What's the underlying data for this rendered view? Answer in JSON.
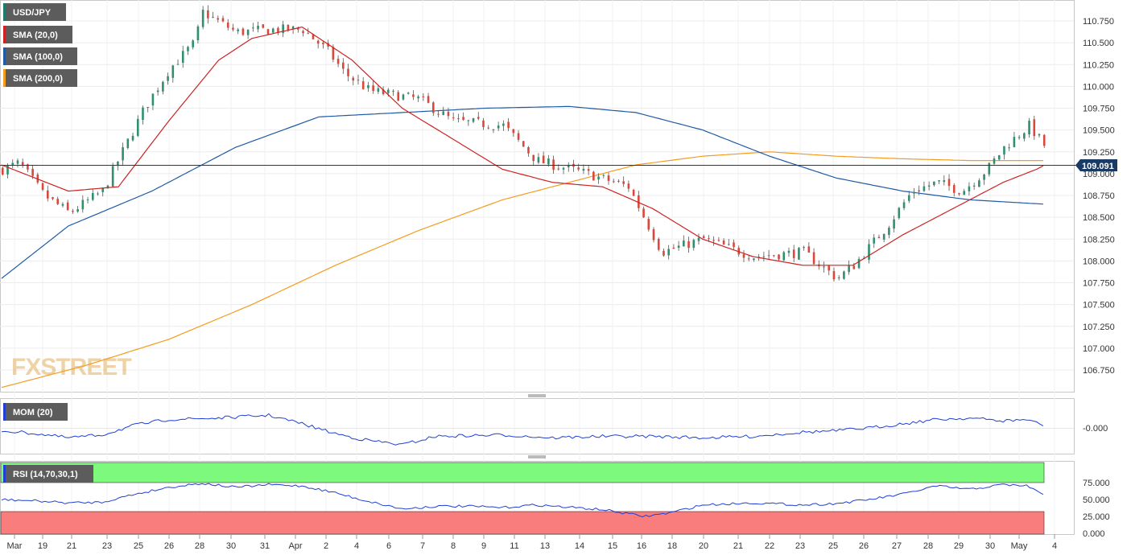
{
  "chart_data": {
    "type": "candlestick",
    "symbol": "USD/JPY",
    "price_axis": {
      "ticks": [
        "110.750",
        "110.500",
        "110.250",
        "110.000",
        "109.750",
        "109.500",
        "109.250",
        "109.000",
        "108.750",
        "108.500",
        "108.250",
        "108.000",
        "107.750",
        "107.500",
        "107.250",
        "107.000",
        "106.750"
      ],
      "range": [
        106.5,
        110.95
      ]
    },
    "current_price": "109.091",
    "indicators": [
      {
        "name": "SMA (20,0)",
        "color": "#cc2222"
      },
      {
        "name": "SMA (100,0)",
        "color": "#1f5aa6"
      },
      {
        "name": "SMA (200,0)",
        "color": "#f39c1f"
      }
    ],
    "date_labels": [
      "Mar",
      "19",
      "21",
      "23",
      "25",
      "26",
      "28",
      "30",
      "31",
      "Apr",
      "2",
      "4",
      "6",
      "7",
      "8",
      "9",
      "11",
      "13",
      "14",
      "15",
      "16",
      "18",
      "20",
      "21",
      "22",
      "23",
      "25",
      "26",
      "27",
      "28",
      "29",
      "30",
      "May",
      "4"
    ],
    "close_anchors": [
      [
        0,
        109.05
      ],
      [
        10,
        109.12
      ],
      [
        25,
        108.75
      ],
      [
        40,
        108.55
      ],
      [
        60,
        108.8
      ],
      [
        85,
        109.75
      ],
      [
        100,
        110.2
      ],
      [
        115,
        110.5
      ],
      [
        120,
        110.85
      ],
      [
        140,
        110.62
      ],
      [
        160,
        110.65
      ],
      [
        180,
        110.65
      ],
      [
        195,
        110.4
      ],
      [
        205,
        110.15
      ],
      [
        220,
        109.95
      ],
      [
        250,
        109.85
      ],
      [
        270,
        109.6
      ],
      [
        300,
        109.55
      ],
      [
        320,
        109.15
      ],
      [
        350,
        109.0
      ],
      [
        375,
        108.85
      ],
      [
        395,
        108.1
      ],
      [
        420,
        108.25
      ],
      [
        450,
        108.05
      ],
      [
        480,
        108.1
      ],
      [
        500,
        107.8
      ],
      [
        510,
        107.95
      ],
      [
        530,
        108.4
      ],
      [
        545,
        108.8
      ],
      [
        560,
        108.9
      ],
      [
        575,
        108.8
      ],
      [
        590,
        109.05
      ],
      [
        600,
        109.3
      ],
      [
        615,
        109.55
      ],
      [
        625,
        109.3
      ]
    ],
    "sma20": [
      [
        0,
        109.1
      ],
      [
        40,
        108.8
      ],
      [
        70,
        108.85
      ],
      [
        100,
        109.6
      ],
      [
        130,
        110.3
      ],
      [
        150,
        110.55
      ],
      [
        180,
        110.68
      ],
      [
        210,
        110.3
      ],
      [
        240,
        109.75
      ],
      [
        270,
        109.4
      ],
      [
        300,
        109.05
      ],
      [
        330,
        108.9
      ],
      [
        360,
        108.85
      ],
      [
        390,
        108.6
      ],
      [
        420,
        108.25
      ],
      [
        450,
        108.05
      ],
      [
        480,
        107.95
      ],
      [
        510,
        107.95
      ],
      [
        540,
        108.3
      ],
      [
        570,
        108.6
      ],
      [
        600,
        108.9
      ],
      [
        620,
        109.05
      ],
      [
        625,
        109.1
      ]
    ],
    "sma100": [
      [
        0,
        107.8
      ],
      [
        40,
        108.4
      ],
      [
        90,
        108.8
      ],
      [
        140,
        109.3
      ],
      [
        190,
        109.65
      ],
      [
        240,
        109.7
      ],
      [
        290,
        109.75
      ],
      [
        340,
        109.77
      ],
      [
        380,
        109.7
      ],
      [
        420,
        109.5
      ],
      [
        460,
        109.2
      ],
      [
        500,
        108.95
      ],
      [
        540,
        108.8
      ],
      [
        580,
        108.7
      ],
      [
        625,
        108.65
      ]
    ],
    "sma200": [
      [
        0,
        106.55
      ],
      [
        50,
        106.8
      ],
      [
        100,
        107.1
      ],
      [
        150,
        107.5
      ],
      [
        200,
        107.95
      ],
      [
        250,
        108.35
      ],
      [
        300,
        108.7
      ],
      [
        340,
        108.9
      ],
      [
        380,
        109.1
      ],
      [
        420,
        109.2
      ],
      [
        460,
        109.25
      ],
      [
        500,
        109.2
      ],
      [
        540,
        109.17
      ],
      [
        580,
        109.15
      ],
      [
        625,
        109.15
      ]
    ],
    "mom": {
      "label": "MOM (20)",
      "tick": "-0.000",
      "anchors": [
        [
          0,
          -0.1
        ],
        [
          20,
          -0.2
        ],
        [
          40,
          -0.35
        ],
        [
          60,
          -0.25
        ],
        [
          80,
          0.1
        ],
        [
          100,
          0.3
        ],
        [
          130,
          0.35
        ],
        [
          160,
          0.45
        ],
        [
          180,
          0.15
        ],
        [
          200,
          -0.2
        ],
        [
          215,
          -0.4
        ],
        [
          240,
          -0.6
        ],
        [
          260,
          -0.3
        ],
        [
          300,
          -0.25
        ],
        [
          330,
          -0.35
        ],
        [
          360,
          -0.3
        ],
        [
          390,
          -0.3
        ],
        [
          420,
          -0.35
        ],
        [
          450,
          -0.3
        ],
        [
          480,
          -0.15
        ],
        [
          500,
          -0.1
        ],
        [
          520,
          0.0
        ],
        [
          540,
          0.15
        ],
        [
          560,
          0.3
        ],
        [
          580,
          0.35
        ],
        [
          600,
          0.25
        ],
        [
          615,
          0.3
        ],
        [
          625,
          0.05
        ]
      ]
    },
    "rsi": {
      "label": "RSI (14,70,30,1)",
      "ticks": [
        "75.000",
        "50.000",
        "25.000",
        "0.000"
      ],
      "anchors": [
        [
          0,
          50
        ],
        [
          20,
          48
        ],
        [
          40,
          45
        ],
        [
          60,
          46
        ],
        [
          80,
          58
        ],
        [
          100,
          68
        ],
        [
          120,
          74
        ],
        [
          140,
          68
        ],
        [
          160,
          72
        ],
        [
          180,
          70
        ],
        [
          200,
          60
        ],
        [
          215,
          50
        ],
        [
          240,
          36
        ],
        [
          260,
          40
        ],
        [
          280,
          40
        ],
        [
          300,
          38
        ],
        [
          320,
          42
        ],
        [
          360,
          35
        ],
        [
          385,
          25
        ],
        [
          400,
          30
        ],
        [
          420,
          42
        ],
        [
          450,
          45
        ],
        [
          480,
          42
        ],
        [
          500,
          44
        ],
        [
          520,
          50
        ],
        [
          540,
          58
        ],
        [
          560,
          70
        ],
        [
          580,
          65
        ],
        [
          600,
          72
        ],
        [
          615,
          70
        ],
        [
          625,
          55
        ]
      ]
    },
    "logo": "FXSTREET"
  }
}
